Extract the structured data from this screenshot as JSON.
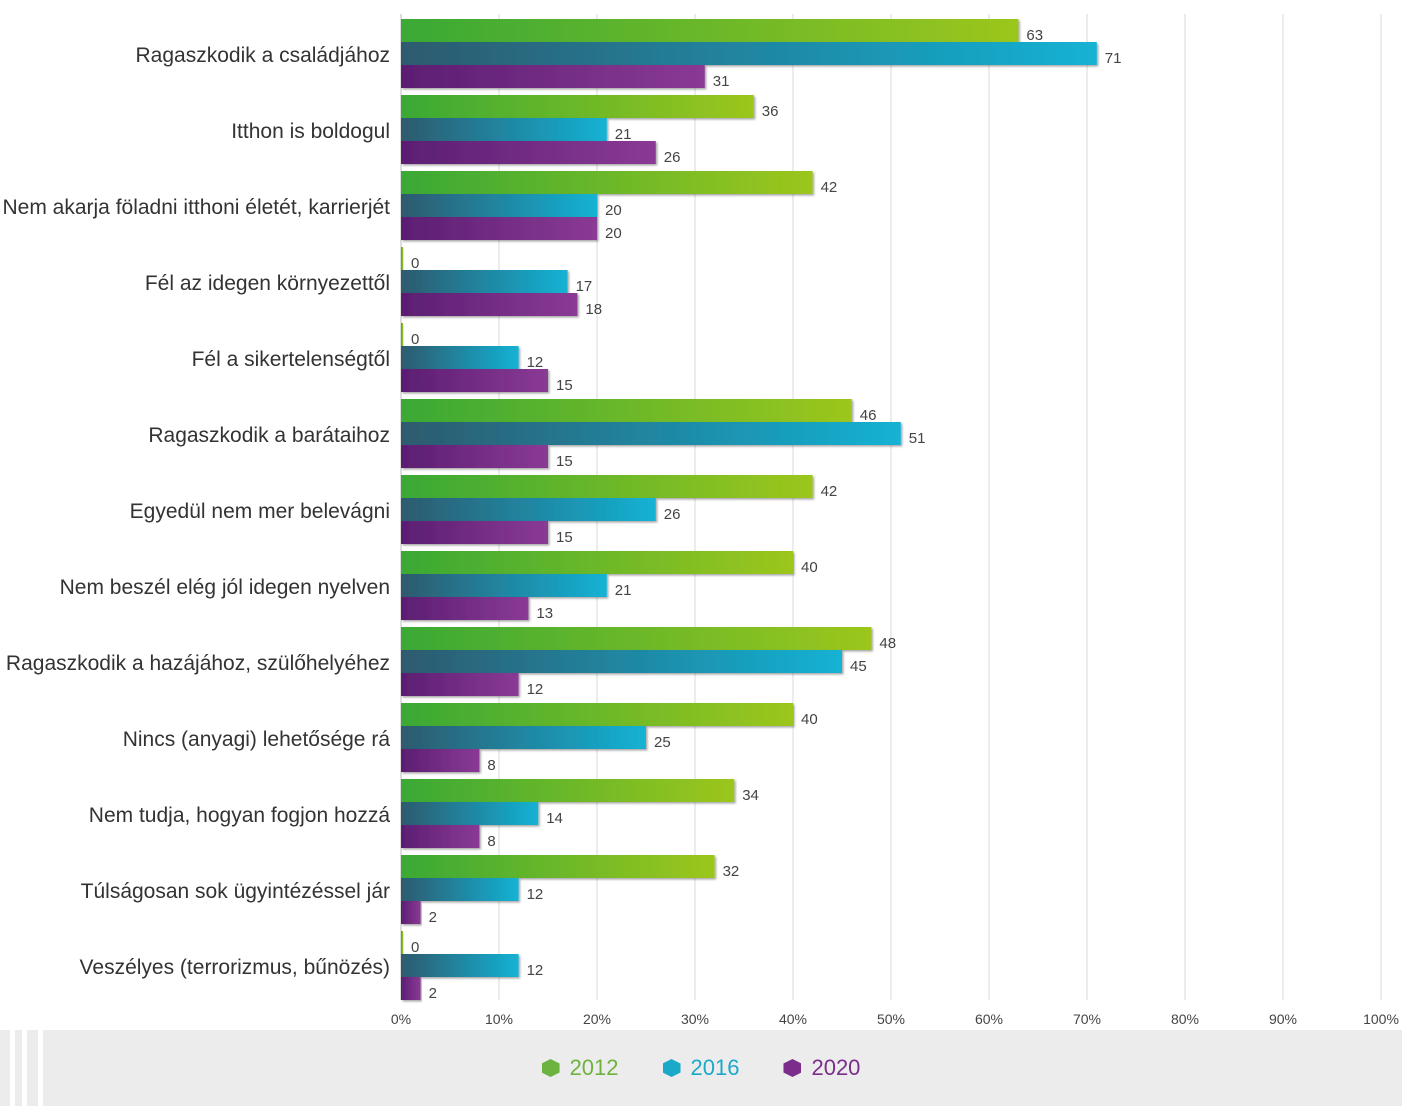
{
  "chart_data": {
    "type": "bar",
    "orientation": "horizontal",
    "categories": [
      "Ragaszkodik a családjához",
      "Itthon is boldogul",
      "Nem akarja föladni itthoni életét, karrierjét",
      "Fél az idegen környezettől",
      "Fél a sikertelenségtől",
      "Ragaszkodik a barátaihoz",
      "Egyedül nem mer belevágni",
      "Nem beszél elég jól idegen nyelven",
      "Ragaszkodik a hazájához, szülőhelyéhez",
      "Nincs (anyagi) lehetősége rá",
      "Nem tudja, hogyan fogjon hozzá",
      "Túlságosan sok ügyintézéssel jár",
      "Veszélyes (terrorizmus, bűnözés)"
    ],
    "series": [
      {
        "name": "2012",
        "color": "#6db33f",
        "values": [
          63,
          36,
          42,
          0,
          0,
          46,
          42,
          40,
          48,
          40,
          34,
          32,
          0
        ]
      },
      {
        "name": "2016",
        "color": "#1aa9c9",
        "values": [
          71,
          21,
          20,
          17,
          12,
          51,
          26,
          21,
          45,
          25,
          14,
          12,
          12
        ]
      },
      {
        "name": "2020",
        "color": "#7b2d8b",
        "values": [
          31,
          26,
          20,
          18,
          15,
          15,
          15,
          13,
          12,
          8,
          8,
          2,
          2
        ]
      }
    ],
    "xlim": [
      0,
      100
    ],
    "xticks": [
      "0%",
      "10%",
      "20%",
      "30%",
      "40%",
      "50%",
      "60%",
      "70%",
      "80%",
      "90%",
      "100%"
    ],
    "grid": true,
    "legend_position": "bottom-center"
  }
}
